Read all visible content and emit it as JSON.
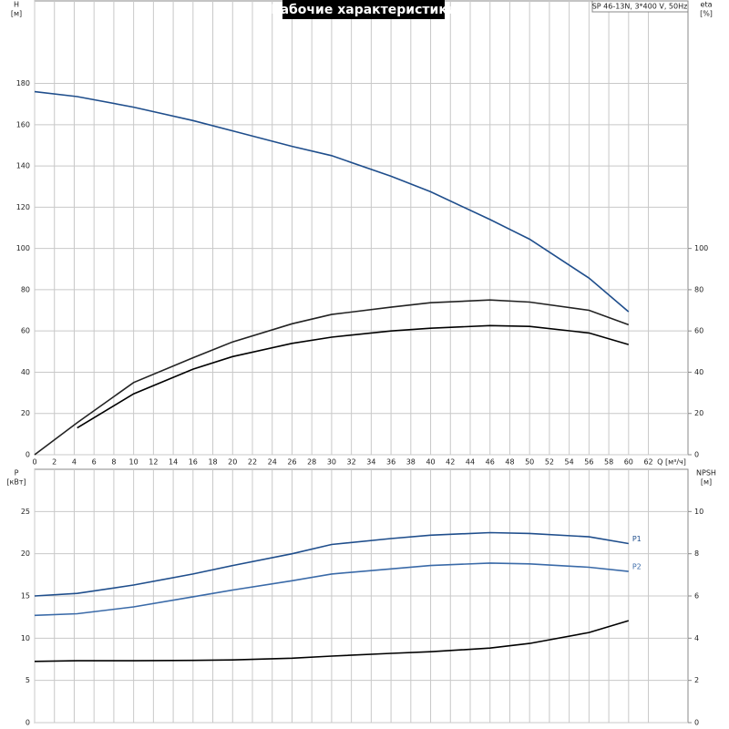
{
  "chart_data": [
    {
      "type": "line",
      "title": "Рабочие характеристики",
      "note": "SP 46-13N, 3*400 V, 50Hz",
      "ylabel": "H",
      "yunit": "[м]",
      "y2label": "eta",
      "y2unit": "[%]",
      "xlabel": "Q [м³/ч]",
      "xlim": [
        0,
        66
      ],
      "xticks": [
        0,
        2,
        4,
        6,
        8,
        10,
        12,
        14,
        16,
        18,
        20,
        22,
        24,
        26,
        28,
        30,
        32,
        34,
        36,
        38,
        40,
        42,
        44,
        46,
        48,
        50,
        52,
        54,
        56,
        58,
        60,
        62
      ],
      "ylim": [
        0,
        220
      ],
      "yticks": [
        0,
        20,
        40,
        60,
        80,
        100,
        120,
        140,
        160,
        180
      ],
      "y2lim": [
        0,
        220
      ],
      "y2ticks": [
        0,
        20,
        40,
        60,
        80,
        100
      ],
      "grid": true,
      "x": [
        0,
        4.3,
        10,
        16,
        20,
        26,
        30,
        36,
        40,
        46,
        50,
        56,
        60
      ],
      "series": [
        {
          "color": "#1f4e8c",
          "values": [
            176,
            173.6,
            168.5,
            162,
            157,
            149.5,
            145,
            135,
            127.5,
            114,
            104.5,
            85.6,
            69.3
          ]
        },
        {
          "color": "#222222",
          "axis": "y2",
          "values": [
            0,
            15.5,
            35,
            47,
            54.7,
            63.5,
            68,
            71.5,
            73.7,
            75,
            74,
            70,
            63
          ]
        },
        {
          "color": "#000000",
          "axis": "y2",
          "values": [
            null,
            13,
            29.5,
            41.5,
            47.6,
            54,
            57,
            60,
            61.3,
            62.6,
            62.2,
            59,
            53.4
          ]
        }
      ]
    },
    {
      "type": "line",
      "ylabel": "P",
      "yunit": "[кВт]",
      "y2label": "NPSH",
      "y2unit": "[м]",
      "xlim": [
        0,
        66
      ],
      "xticks": [
        0,
        2,
        4,
        6,
        8,
        10,
        12,
        14,
        16,
        18,
        20,
        22,
        24,
        26,
        28,
        30,
        32,
        34,
        36,
        38,
        40,
        42,
        44,
        46,
        48,
        50,
        52,
        54,
        56,
        58,
        60,
        62
      ],
      "ylim": [
        0,
        30
      ],
      "yticks": [
        0,
        5,
        10,
        15,
        20,
        25
      ],
      "y2lim": [
        0,
        12
      ],
      "y2ticks": [
        0,
        2,
        4,
        6,
        8,
        10
      ],
      "grid": true,
      "x": [
        0,
        4.3,
        10,
        16,
        20,
        26,
        30,
        36,
        40,
        46,
        50,
        56,
        60
      ],
      "series": [
        {
          "name": "P1",
          "color": "#1f4e8c",
          "values": [
            15,
            15.3,
            16.3,
            17.6,
            18.6,
            20,
            21.1,
            21.8,
            22.2,
            22.5,
            22.4,
            22,
            21.2
          ]
        },
        {
          "name": "P2",
          "color": "#3a6aa8",
          "values": [
            12.7,
            12.9,
            13.7,
            14.9,
            15.7,
            16.8,
            17.6,
            18.2,
            18.6,
            18.9,
            18.8,
            18.4,
            17.9
          ]
        },
        {
          "color": "#000000",
          "axis": "y2",
          "values": [
            2.9,
            2.93,
            2.93,
            2.95,
            2.97,
            3.05,
            3.15,
            3.28,
            3.36,
            3.53,
            3.75,
            4.27,
            4.83
          ]
        }
      ]
    }
  ]
}
